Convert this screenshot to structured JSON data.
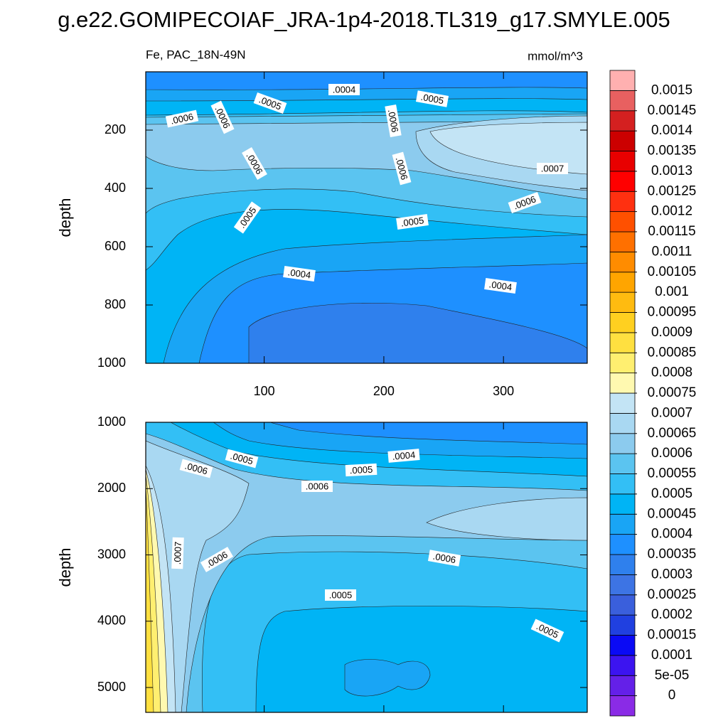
{
  "title": "g.e22.GOMIPECOIAF_JRA-1p4-2018.TL319_g17.SMYLE.005",
  "chart_data": [
    {
      "type": "contour",
      "subtitle": "Fe, PAC_18N-49N",
      "units": "mmol/m^3",
      "y_label": "depth",
      "xlim": [
        1,
        370
      ],
      "xticks": [
        100,
        200,
        300
      ],
      "ylim": [
        0,
        1000
      ],
      "yticks": [
        200,
        400,
        600,
        800,
        1000
      ],
      "contour_labels": [
        ".0004",
        ".0005",
        ".0005",
        ".0006",
        ".0006",
        ".0006",
        ".0006",
        ".0006",
        ".0007",
        ".0006",
        ".0005",
        ".0005",
        ".0004",
        ".0004"
      ]
    },
    {
      "type": "contour",
      "y_label": "depth",
      "xlim": [
        1,
        370
      ],
      "xticks": [
        100,
        200,
        300
      ],
      "ylim": [
        1000,
        5375
      ],
      "yticks": [
        1000,
        2000,
        3000,
        4000,
        5000
      ],
      "contour_labels": [
        ".0005",
        ".0004",
        ".0006",
        ".0005",
        ".0006",
        ".0007",
        ".0006",
        ".0006",
        ".0005",
        ".0005"
      ]
    }
  ],
  "colorbar": {
    "levels": [
      0,
      {
        "value": 5e-05,
        "label": "5e-05"
      },
      0.0001,
      0.00015,
      0.0002,
      0.00025,
      0.0003,
      0.00035,
      0.0004,
      0.00045,
      0.0005,
      0.00055,
      0.0006,
      0.00065,
      0.0007,
      0.00075,
      0.0008,
      0.00085,
      0.0009,
      0.00095,
      0.001,
      0.00105,
      0.0011,
      0.00115,
      0.0012,
      0.00125,
      0.0013,
      0.00135,
      0.0014,
      0.00145,
      0.0015
    ],
    "colors": [
      "#8a2be6",
      "#6420e8",
      "#3c14f0",
      "#0a0af5",
      "#2040e0",
      "#3a5fdc",
      "#3d74e4",
      "#2f80ed",
      "#1e90ff",
      "#19a5f5",
      "#00b4f5",
      "#33bff5",
      "#5bc4f0",
      "#8ccbee",
      "#a9d8f2",
      "#c3e4f5",
      "#fff9b0",
      "#ffef70",
      "#ffe040",
      "#ffd020",
      "#ffbb10",
      "#ffa500",
      "#ff8c00",
      "#ff7000",
      "#ff5000",
      "#ff3010",
      "#ff0000",
      "#e80000",
      "#cc0000",
      "#d42020",
      "#e86060",
      "#ffb0b0"
    ]
  }
}
